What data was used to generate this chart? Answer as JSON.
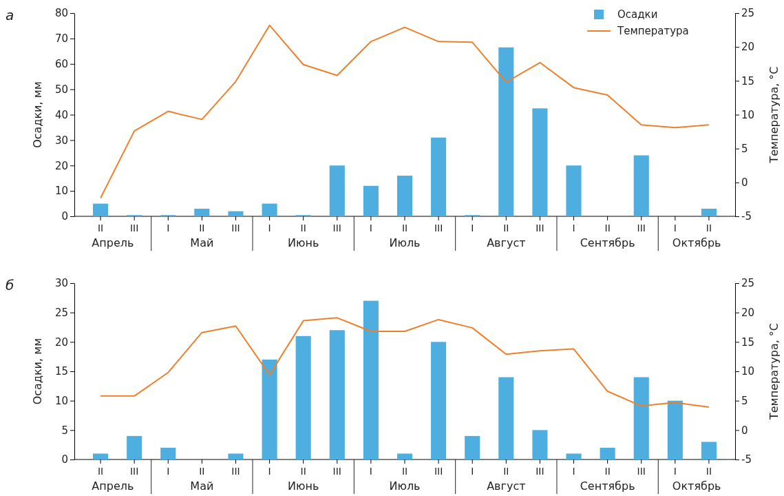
{
  "chart_data": [
    {
      "type": "bar",
      "title": "а",
      "categories": [
        "II",
        "III",
        "I",
        "II",
        "III",
        "I",
        "II",
        "III",
        "I",
        "II",
        "III",
        "I",
        "II",
        "III",
        "I",
        "II",
        "III",
        "I",
        "II"
      ],
      "series": [
        {
          "name": "Осадки",
          "color": "#4eaee0",
          "values": [
            5,
            0.5,
            0.5,
            3,
            2,
            5,
            0.5,
            20,
            12,
            16,
            31,
            0.5,
            66.5,
            42.5,
            20,
            null,
            24,
            null,
            3
          ]
        },
        {
          "name": "Температура",
          "type": "line",
          "axis": "y2",
          "color": "#f07f2a",
          "values": [
            -2.3,
            7.6,
            10.5,
            9.3,
            14.9,
            23.2,
            17.4,
            15.8,
            20.8,
            22.9,
            20.8,
            20.7,
            14.8,
            17.7,
            14,
            12.9,
            8.5,
            8.1,
            8.5
          ]
        }
      ],
      "ylabel": "Осадки, мм",
      "y2label": "Температура, °C",
      "ylim": [
        0,
        80
      ],
      "yticks": [
        0,
        10,
        20,
        30,
        40,
        50,
        60,
        70,
        80
      ],
      "y2lim": [
        -5,
        25
      ],
      "y2ticks": [
        -5,
        0,
        5,
        10,
        15,
        20,
        25
      ],
      "legend": "top right",
      "marker": "none",
      "annotations": [
        "Апрель",
        "Май",
        "Июнь",
        "Июль",
        "Август",
        "Сентябрь",
        "Октябрь"
      ]
    },
    {
      "type": "bar",
      "title": "б",
      "categories": [
        "II",
        "III",
        "I",
        "II",
        "III",
        "I",
        "II",
        "III",
        "I",
        "II",
        "III",
        "I",
        "II",
        "III",
        "I",
        "II",
        "III",
        "I",
        "II"
      ],
      "series": [
        {
          "color": "#4eaee0",
          "values": [
            1,
            4,
            2,
            null,
            1,
            17,
            21,
            22,
            27,
            1,
            20,
            4,
            14,
            5,
            1,
            2,
            14,
            10,
            3
          ]
        },
        {
          "type": "line",
          "axis": "y2",
          "color": "#f07f2a",
          "values": [
            5.8,
            5.8,
            9.8,
            16.6,
            17.7,
            9.4,
            18.6,
            19.1,
            16.8,
            16.8,
            18.8,
            17.4,
            12.9,
            13.5,
            13.8,
            6.6,
            4.1,
            4.7,
            3.9
          ]
        }
      ],
      "ylabel": "Осадки, мм",
      "y2label": "Температура, °C",
      "ylim": [
        0,
        30
      ],
      "yticks": [
        0,
        5,
        10,
        15,
        20,
        25,
        30
      ],
      "y2lim": [
        -5,
        25
      ],
      "y2ticks": [
        -5,
        0,
        5,
        10,
        15,
        20,
        25
      ],
      "legend": false,
      "marker": "none",
      "annotations": [
        "Апрель",
        "Май",
        "Июнь",
        "Июль",
        "Август",
        "Сентябрь",
        "Октябрь"
      ]
    }
  ]
}
